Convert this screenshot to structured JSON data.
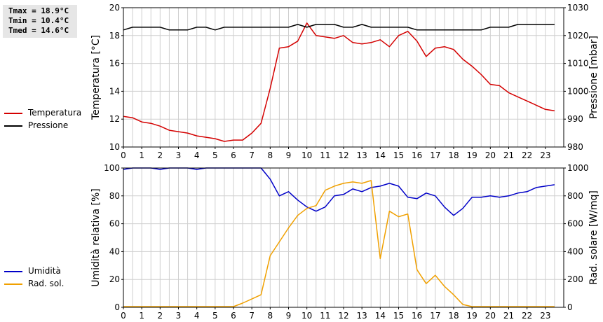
{
  "stats": {
    "tmax": "Tmax = 18.9°C",
    "tmin": "Tmin = 10.4°C",
    "tmed": "Tmed = 14.6°C"
  },
  "colors": {
    "temperature": "#d40000",
    "pressure": "#000000",
    "humidity": "#0000c8",
    "radiation": "#f0a000",
    "grid": "#cfcfcf"
  },
  "chart_data": [
    {
      "type": "line",
      "x": [
        0,
        0.5,
        1,
        1.5,
        2,
        2.5,
        3,
        3.5,
        4,
        4.5,
        5,
        5.5,
        6,
        6.5,
        7,
        7.5,
        8,
        8.5,
        9,
        9.5,
        10,
        10.5,
        11,
        11.5,
        12,
        12.5,
        13,
        13.5,
        14,
        14.5,
        15,
        15.5,
        16,
        16.5,
        17,
        17.5,
        18,
        18.5,
        19,
        19.5,
        20,
        20.5,
        21,
        21.5,
        22,
        22.5,
        23,
        23.5
      ],
      "xticks": [
        "0",
        "1",
        "2",
        "3",
        "4",
        "5",
        "6",
        "7",
        "8",
        "9",
        "10",
        "11",
        "12",
        "13",
        "14",
        "15",
        "16",
        "17",
        "18",
        "19",
        "20",
        "21",
        "22",
        "23"
      ],
      "xlim": [
        0,
        24
      ],
      "ylabel": "Temperatura [°C]",
      "ylim": [
        10,
        20
      ],
      "yticks": [
        "10",
        "12",
        "14",
        "16",
        "18",
        "20"
      ],
      "y2label": "Pressione [mbar]",
      "y2lim": [
        980,
        1030
      ],
      "y2ticks": [
        "980",
        "990",
        "1000",
        "1010",
        "1020",
        "1030"
      ],
      "grid": true,
      "legend": "left",
      "series": [
        {
          "name": "Temperatura",
          "axis": "left",
          "values": [
            12.2,
            12.1,
            11.8,
            11.7,
            11.5,
            11.2,
            11.1,
            11.0,
            10.8,
            10.7,
            10.6,
            10.4,
            10.5,
            10.5,
            11.0,
            11.7,
            14.2,
            17.1,
            17.2,
            17.6,
            18.9,
            18.0,
            17.9,
            17.8,
            18.0,
            17.5,
            17.4,
            17.5,
            17.7,
            17.2,
            18.0,
            18.3,
            17.6,
            16.5,
            17.1,
            17.2,
            17.0,
            16.3,
            15.8,
            15.2,
            14.5,
            14.4,
            13.9,
            13.6,
            13.3,
            13.0,
            12.7,
            12.6
          ]
        },
        {
          "name": "Pressione",
          "axis": "right",
          "values": [
            1022,
            1023,
            1023,
            1023,
            1023,
            1022,
            1022,
            1022,
            1023,
            1023,
            1022,
            1023,
            1023,
            1023,
            1023,
            1023,
            1023,
            1023,
            1023,
            1024,
            1023,
            1024,
            1024,
            1024,
            1023,
            1023,
            1024,
            1023,
            1023,
            1023,
            1023,
            1023,
            1022,
            1022,
            1022,
            1022,
            1022,
            1022,
            1022,
            1022,
            1023,
            1023,
            1023,
            1024,
            1024,
            1024,
            1024,
            1024
          ]
        }
      ]
    },
    {
      "type": "line",
      "x": [
        0,
        0.5,
        1,
        1.5,
        2,
        2.5,
        3,
        3.5,
        4,
        4.5,
        5,
        5.5,
        6,
        6.5,
        7,
        7.5,
        8,
        8.5,
        9,
        9.5,
        10,
        10.5,
        11,
        11.5,
        12,
        12.5,
        13,
        13.5,
        14,
        14.5,
        15,
        15.5,
        16,
        16.5,
        17,
        17.5,
        18,
        18.5,
        19,
        19.5,
        20,
        20.5,
        21,
        21.5,
        22,
        22.5,
        23,
        23.5
      ],
      "xticks": [
        "0",
        "1",
        "2",
        "3",
        "4",
        "5",
        "6",
        "7",
        "8",
        "9",
        "10",
        "11",
        "12",
        "13",
        "14",
        "15",
        "16",
        "17",
        "18",
        "19",
        "20",
        "21",
        "22",
        "23"
      ],
      "xlim": [
        0,
        24
      ],
      "ylabel": "Umidità relativa [%]",
      "ylim": [
        0,
        100
      ],
      "yticks": [
        "0",
        "20",
        "40",
        "60",
        "80",
        "100"
      ],
      "y2label": "Rad. solare [W/mq]",
      "y2lim": [
        0,
        1000
      ],
      "y2ticks": [
        "0",
        "200",
        "400",
        "600",
        "800",
        "1000"
      ],
      "grid": true,
      "legend": "left",
      "series": [
        {
          "name": "Umidità",
          "axis": "left",
          "values": [
            99,
            100,
            100,
            100,
            99,
            100,
            100,
            100,
            99,
            100,
            100,
            100,
            100,
            100,
            100,
            100,
            92,
            80,
            83,
            77,
            72,
            69,
            72,
            80,
            81,
            85,
            83,
            86,
            87,
            89,
            87,
            79,
            78,
            82,
            80,
            72,
            66,
            71,
            79,
            79,
            80,
            79,
            80,
            82,
            83,
            86,
            87,
            88
          ]
        },
        {
          "name": "Rad. sol.",
          "axis": "right",
          "values": [
            5,
            5,
            5,
            5,
            5,
            5,
            5,
            5,
            5,
            5,
            5,
            5,
            5,
            30,
            60,
            90,
            370,
            470,
            570,
            660,
            710,
            730,
            840,
            870,
            890,
            900,
            890,
            910,
            350,
            690,
            650,
            670,
            270,
            170,
            230,
            150,
            90,
            20,
            5,
            5,
            5,
            5,
            5,
            5,
            5,
            5,
            5,
            5
          ]
        }
      ]
    }
  ]
}
